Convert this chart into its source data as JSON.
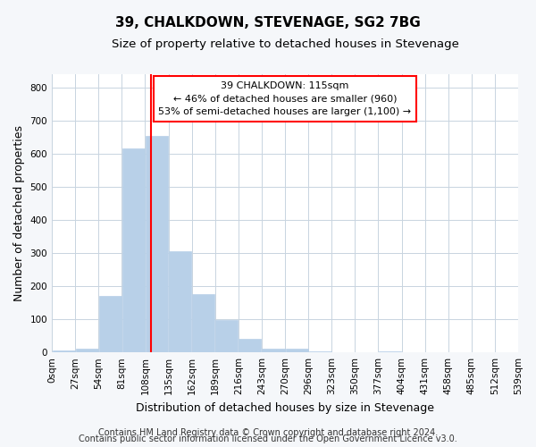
{
  "title": "39, CHALKDOWN, STEVENAGE, SG2 7BG",
  "subtitle": "Size of property relative to detached houses in Stevenage",
  "xlabel": "Distribution of detached houses by size in Stevenage",
  "ylabel": "Number of detached properties",
  "bin_edges": [
    0,
    27,
    54,
    81,
    108,
    135,
    162,
    189,
    216,
    243,
    270,
    297,
    324,
    351,
    378,
    405,
    432,
    459,
    486,
    513,
    540
  ],
  "bar_heights": [
    5,
    12,
    170,
    615,
    655,
    305,
    175,
    98,
    40,
    12,
    10,
    2,
    0,
    0,
    2,
    0,
    0,
    0,
    0,
    0
  ],
  "bar_color": "#b8d0e8",
  "ylim": [
    0,
    840
  ],
  "yticks": [
    0,
    100,
    200,
    300,
    400,
    500,
    600,
    700,
    800
  ],
  "xtick_labels": [
    "0sqm",
    "27sqm",
    "54sqm",
    "81sqm",
    "108sqm",
    "135sqm",
    "162sqm",
    "189sqm",
    "216sqm",
    "243sqm",
    "270sqm",
    "296sqm",
    "323sqm",
    "350sqm",
    "377sqm",
    "404sqm",
    "431sqm",
    "458sqm",
    "485sqm",
    "512sqm",
    "539sqm"
  ],
  "vline_x": 115,
  "vline_color": "red",
  "annotation_line1": "39 CHALKDOWN: 115sqm",
  "annotation_line2": "← 46% of detached houses are smaller (960)",
  "annotation_line3": "53% of semi-detached houses are larger (1,100) →",
  "footer1": "Contains HM Land Registry data © Crown copyright and database right 2024.",
  "footer2": "Contains public sector information licensed under the Open Government Licence v3.0.",
  "background_color": "#f5f7fa",
  "plot_background_color": "#ffffff",
  "grid_color": "#c8d4e0",
  "title_fontsize": 11,
  "subtitle_fontsize": 9.5,
  "axis_label_fontsize": 9,
  "tick_fontsize": 7.5,
  "footer_fontsize": 7
}
